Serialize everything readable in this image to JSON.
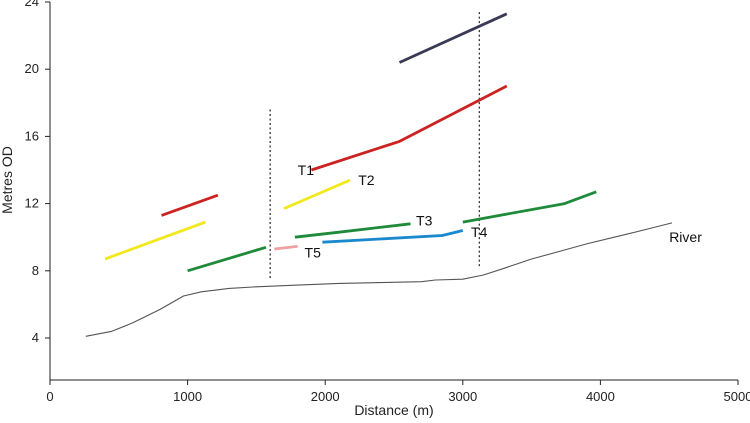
{
  "chart_data": {
    "type": "line",
    "xlabel": "Distance (m)",
    "ylabel": "Metres OD",
    "xlim": [
      0,
      5000
    ],
    "ylim": [
      1.5,
      24
    ],
    "x_ticks": [
      0,
      1000,
      2000,
      3000,
      4000,
      5000
    ],
    "y_ticks": [
      4,
      8,
      12,
      16,
      20,
      24
    ],
    "grid": false,
    "vertical_dotted_lines": [
      1600,
      3120
    ],
    "series": [
      {
        "color": "#3a3a55",
        "points": [
          [
            2540,
            20.4
          ],
          [
            3320,
            23.3
          ]
        ]
      },
      {
        "name": "T1",
        "color": "#cc2222",
        "points": [
          [
            1900,
            14.0
          ],
          [
            2540,
            15.7
          ],
          [
            3320,
            19.0
          ]
        ]
      },
      {
        "color": "#cc2222",
        "points": [
          [
            810,
            11.3
          ],
          [
            1220,
            12.5
          ]
        ]
      },
      {
        "name": "T2",
        "color": "#f2e81c",
        "points": [
          [
            1700,
            11.7
          ],
          [
            2180,
            13.4
          ]
        ]
      },
      {
        "color": "#f2e81c",
        "points": [
          [
            400,
            8.7
          ],
          [
            1130,
            10.9
          ]
        ]
      },
      {
        "name": "T3",
        "color": "#1f8a3a",
        "points": [
          [
            1780,
            10.0
          ],
          [
            2100,
            10.3
          ],
          [
            2620,
            10.8
          ]
        ]
      },
      {
        "color": "#1f8a3a",
        "points": [
          [
            1000,
            8.0
          ],
          [
            1570,
            9.4
          ]
        ]
      },
      {
        "color": "#1f8a3a",
        "points": [
          [
            3000,
            10.9
          ],
          [
            3740,
            12.0
          ],
          [
            3970,
            12.7
          ]
        ]
      },
      {
        "name": "T4",
        "color": "#1a88cc",
        "points": [
          [
            1980,
            9.7
          ],
          [
            2850,
            10.1
          ],
          [
            3000,
            10.4
          ]
        ]
      },
      {
        "name": "T5",
        "color": "#f0a0a0",
        "points": [
          [
            1630,
            9.3
          ],
          [
            1800,
            9.45
          ]
        ]
      },
      {
        "name": "River",
        "color": "#555555",
        "points": [
          [
            260,
            4.1
          ],
          [
            450,
            4.4
          ],
          [
            600,
            4.9
          ],
          [
            800,
            5.7
          ],
          [
            970,
            6.5
          ],
          [
            1100,
            6.75
          ],
          [
            1300,
            6.95
          ],
          [
            1500,
            7.05
          ],
          [
            1800,
            7.15
          ],
          [
            2100,
            7.25
          ],
          [
            2400,
            7.3
          ],
          [
            2700,
            7.35
          ],
          [
            2800,
            7.45
          ],
          [
            3000,
            7.5
          ],
          [
            3150,
            7.75
          ],
          [
            3300,
            8.15
          ],
          [
            3500,
            8.7
          ],
          [
            3700,
            9.15
          ],
          [
            3900,
            9.6
          ],
          [
            4100,
            10.0
          ],
          [
            4300,
            10.4
          ],
          [
            4520,
            10.85
          ]
        ]
      }
    ],
    "labels": [
      {
        "text": "T1",
        "x": 1800,
        "y": 14.0
      },
      {
        "text": "T2",
        "x": 2240,
        "y": 13.4
      },
      {
        "text": "T3",
        "x": 2660,
        "y": 11.0
      },
      {
        "text": "T4",
        "x": 3060,
        "y": 10.3
      },
      {
        "text": "T5",
        "x": 1850,
        "y": 9.1
      },
      {
        "text": "River",
        "x": 4500,
        "y": 10.0
      }
    ]
  }
}
